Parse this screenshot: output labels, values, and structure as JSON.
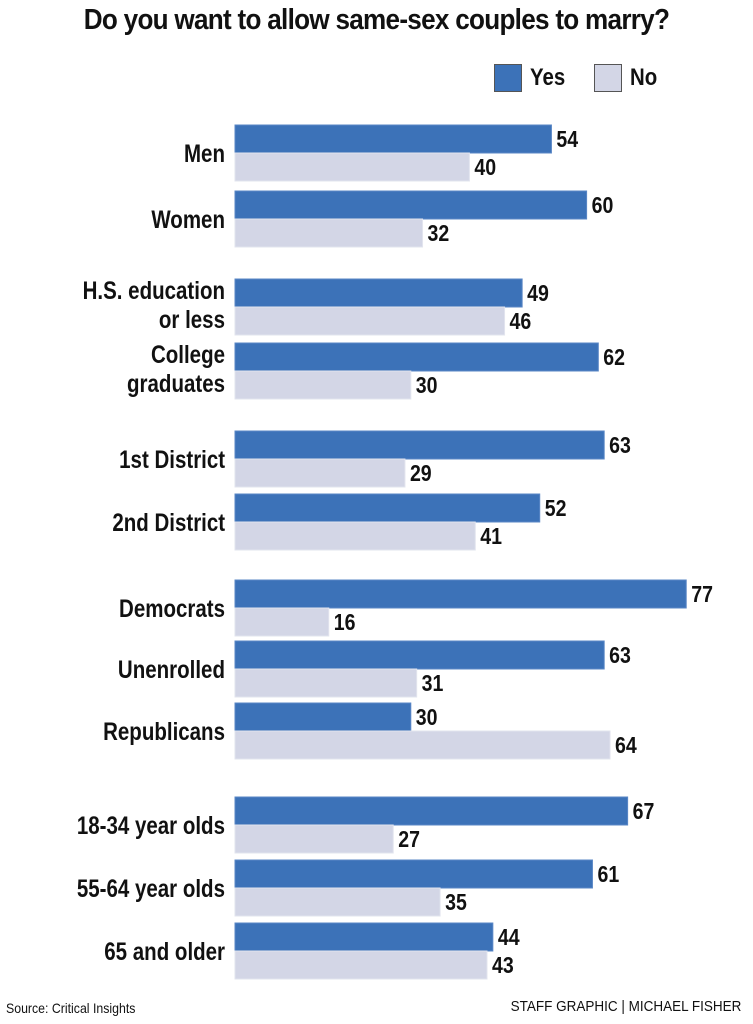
{
  "chart_data": {
    "type": "bar",
    "orientation": "horizontal",
    "title": "Do you want to allow same-sex couples to marry?",
    "xlabel": "",
    "ylabel": "",
    "xlim": [
      0,
      80
    ],
    "grid": false,
    "legend": {
      "placement": "top-right",
      "entries": [
        "Yes",
        "No"
      ]
    },
    "categories": [
      "Men",
      "Women",
      "H.S. education or less",
      "College graduates",
      "1st District",
      "2nd District",
      "Democrats",
      "Unenrolled",
      "Republicans",
      "18-34 year olds",
      "55-64 year olds",
      "65 and older"
    ],
    "category_label_lines": [
      [
        "Men"
      ],
      [
        "Women"
      ],
      [
        "H.S. education",
        "or less"
      ],
      [
        "College",
        "graduates"
      ],
      [
        "1st District"
      ],
      [
        "2nd District"
      ],
      [
        "Democrats"
      ],
      [
        "Unenrolled"
      ],
      [
        "Republicans"
      ],
      [
        "18-34 year olds"
      ],
      [
        "55-64 year olds"
      ],
      [
        "65 and older"
      ]
    ],
    "groups": [
      [
        "Men",
        "Women"
      ],
      [
        "H.S. education or less",
        "College graduates"
      ],
      [
        "1st District",
        "2nd District"
      ],
      [
        "Democrats",
        "Unenrolled",
        "Republicans"
      ],
      [
        "18-34 year olds",
        "55-64 year olds",
        "65 and older"
      ]
    ],
    "series": [
      {
        "name": "Yes",
        "color": "#3c72b8",
        "values": [
          54,
          60,
          49,
          62,
          63,
          52,
          77,
          63,
          30,
          67,
          61,
          44
        ]
      },
      {
        "name": "No",
        "color": "#d3d6e6",
        "values": [
          40,
          32,
          46,
          30,
          29,
          41,
          16,
          31,
          64,
          27,
          35,
          43
        ]
      }
    ],
    "units": "percent"
  },
  "legend": {
    "yes_label": "Yes",
    "no_label": "No",
    "yes_color": "#3c72b8",
    "no_color": "#d3d6e6"
  },
  "footer": {
    "source": "Source: Critical Insights",
    "credit": "STAFF GRAPHIC | MICHAEL FISHER"
  }
}
